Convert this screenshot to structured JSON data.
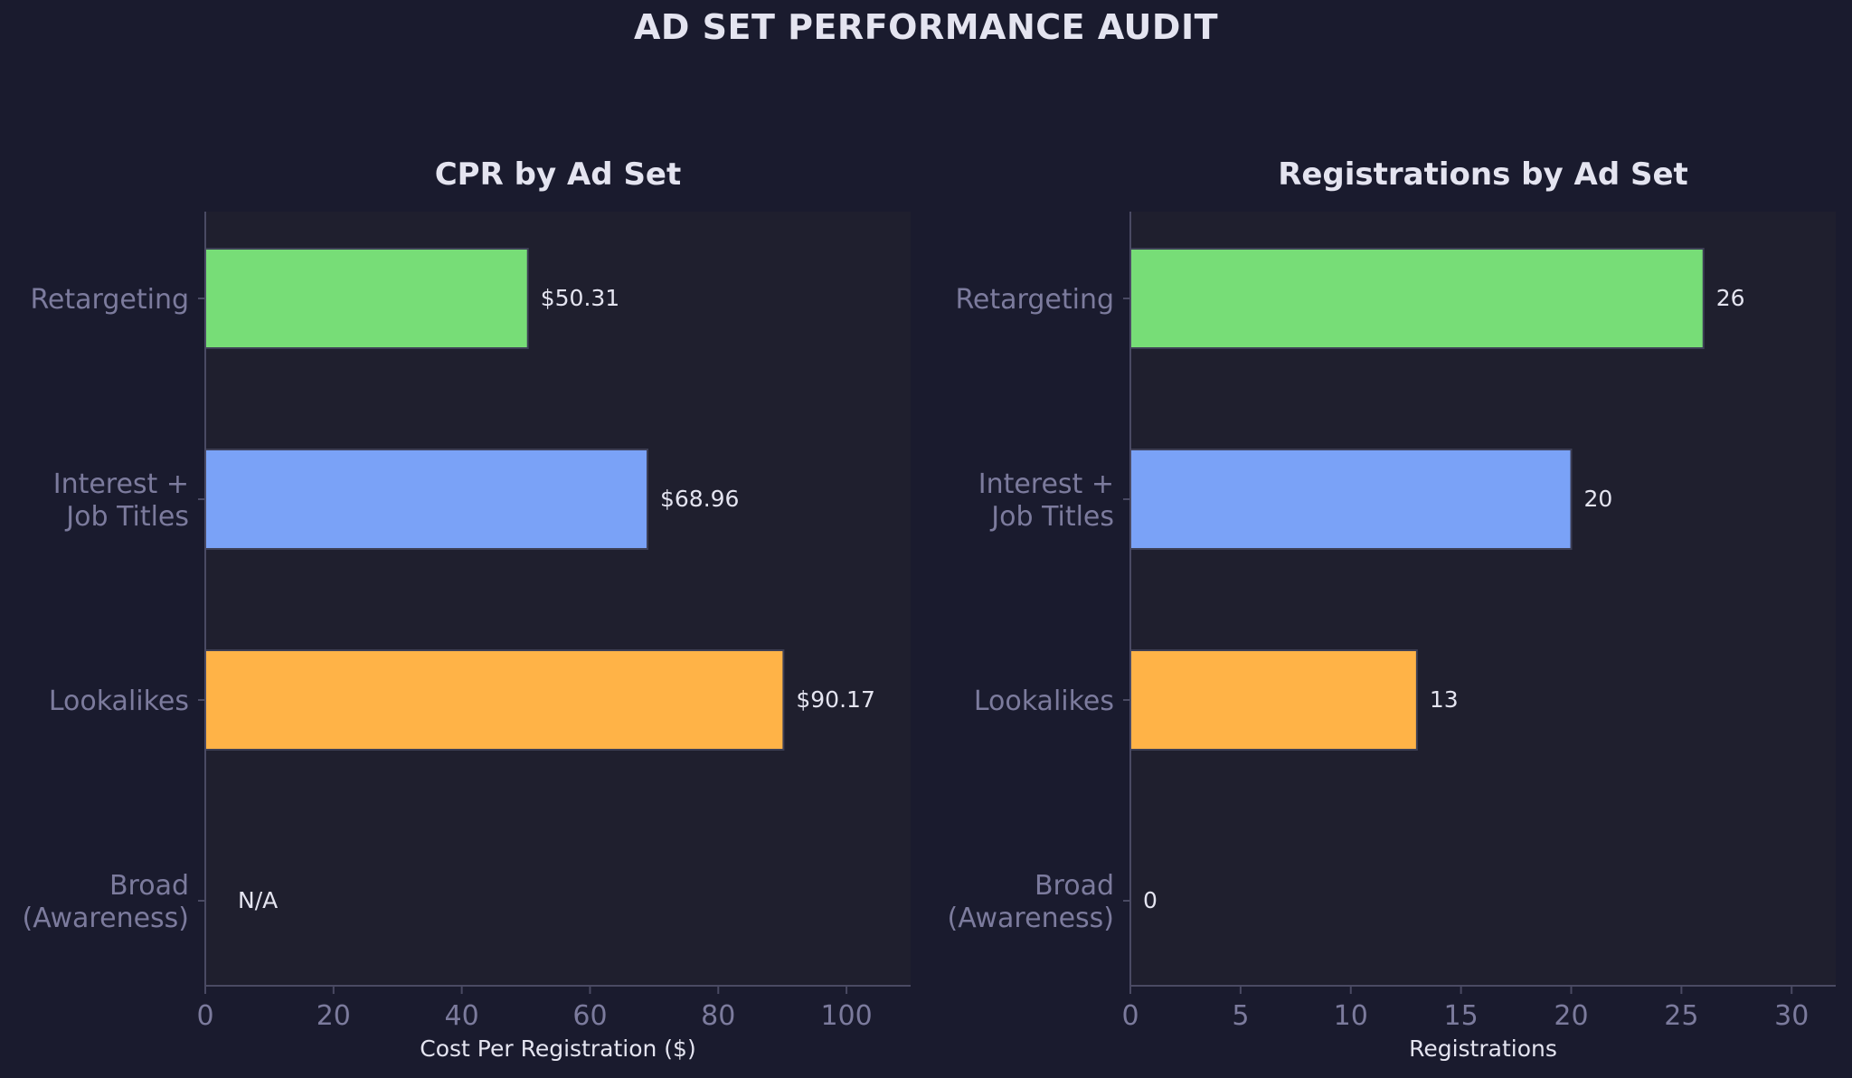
{
  "title": "AD SET PERFORMANCE AUDIT",
  "colors": {
    "background": "#1a1b2e",
    "plot_background": "#1f1f2e",
    "axis": "#4a4a63",
    "muted_text": "#7c7b9d",
    "text": "#e4e4f0",
    "na": "#ff6b6b",
    "green": "#77dd77",
    "blue": "#7aa2f7",
    "orange": "#ffb347"
  },
  "chart_data": [
    {
      "type": "bar",
      "orientation": "horizontal",
      "title": "CPR by Ad Set",
      "xlabel": "Cost Per Registration ($)",
      "ylabel": "",
      "categories": [
        "Retargeting",
        "Interest +\nJob Titles",
        "Lookalikes",
        "Broad\n(Awareness)"
      ],
      "values": [
        50.31,
        68.96,
        90.17,
        null
      ],
      "value_labels": [
        "$50.31",
        "$68.96",
        "$90.17",
        "N/A"
      ],
      "colors": [
        "#77dd77",
        "#7aa2f7",
        "#ffb347",
        null
      ],
      "xlim": [
        0,
        110
      ],
      "xticks": [
        0,
        20,
        40,
        60,
        80,
        100
      ],
      "grid": false
    },
    {
      "type": "bar",
      "orientation": "horizontal",
      "title": "Registrations by Ad Set",
      "xlabel": "Registrations",
      "ylabel": "",
      "categories": [
        "Retargeting",
        "Interest +\nJob Titles",
        "Lookalikes",
        "Broad\n(Awareness)"
      ],
      "values": [
        26,
        20,
        13,
        0
      ],
      "value_labels": [
        "26",
        "20",
        "13",
        "0"
      ],
      "colors": [
        "#77dd77",
        "#7aa2f7",
        "#ffb347",
        null
      ],
      "xlim": [
        0,
        32
      ],
      "xticks": [
        0,
        5,
        10,
        15,
        20,
        25,
        30
      ],
      "grid": false
    }
  ]
}
